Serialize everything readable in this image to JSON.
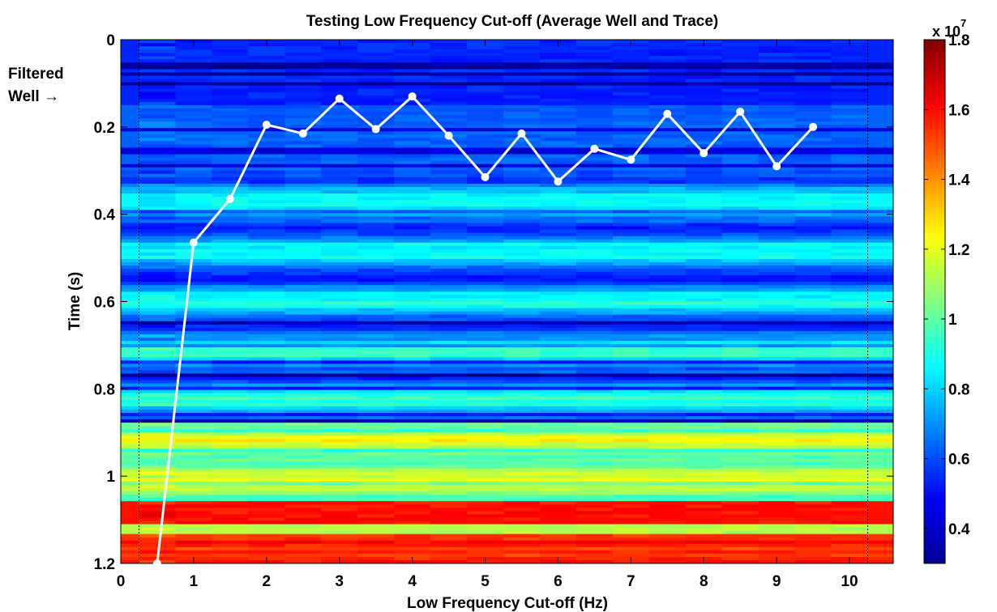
{
  "chart_data": {
    "type": "heatmap",
    "title": "Testing Low Frequency Cut-off (Average Well and Trace)",
    "xlabel": "Low Frequency Cut-off (Hz)",
    "ylabel": "Time (s)",
    "xlim": [
      0,
      10.6
    ],
    "ylim": [
      0,
      1.2
    ],
    "y_reversed": true,
    "x_ticks": [
      "0",
      "1",
      "2",
      "3",
      "4",
      "5",
      "6",
      "7",
      "8",
      "9",
      "10"
    ],
    "y_ticks": [
      "0",
      "0.2",
      "0.4",
      "0.6",
      "0.8",
      "1",
      "1.2"
    ],
    "annotation": {
      "line1": "Filtered",
      "line2": "Well →"
    },
    "colorbar": {
      "colormap": "jet",
      "range": [
        3000000,
        18000000
      ],
      "ticks": [
        "0.4",
        "0.6",
        "0.8",
        "1",
        "1.2",
        "1.4",
        "1.6",
        "1.8"
      ],
      "multiplier_base": "x 10",
      "multiplier_exp": "7"
    },
    "line": {
      "color": "#ffffff",
      "x": [
        0.5,
        1,
        1.5,
        2,
        2.5,
        3,
        3.5,
        4,
        4.5,
        5,
        5.5,
        6,
        6.5,
        7,
        7.5,
        8,
        8.5,
        9,
        9.5
      ],
      "y": [
        1.2,
        0.465,
        0.365,
        0.195,
        0.215,
        0.135,
        0.205,
        0.13,
        0.22,
        0.315,
        0.215,
        0.325,
        0.25,
        0.275,
        0.17,
        0.26,
        0.165,
        0.29,
        0.2
      ]
    }
  }
}
